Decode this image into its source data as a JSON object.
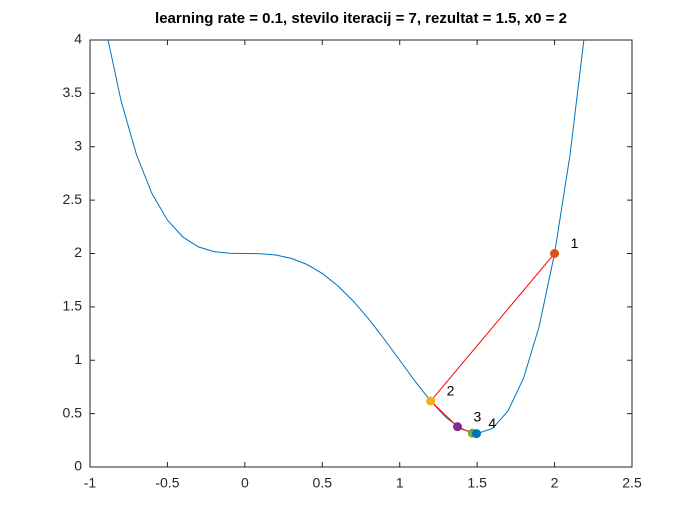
{
  "chart_data": {
    "type": "line",
    "title": "learning rate = 0.1, stevilo iteracij = 7, rezultat = 1.5, x0 = 2",
    "xlim": [
      -1,
      2.5
    ],
    "xticks": [
      -1,
      -0.5,
      0,
      0.5,
      1,
      1.5,
      2,
      2.5
    ],
    "ylim": [
      0,
      4
    ],
    "yticks": [
      0,
      0.5,
      1,
      1.5,
      2,
      2.5,
      3,
      3.5,
      4
    ],
    "curve": {
      "color": "#0072bd",
      "x": [
        -0.9,
        -0.8,
        -0.7,
        -0.6,
        -0.5,
        -0.4,
        -0.3,
        -0.2,
        -0.1,
        0,
        0.1,
        0.2,
        0.3,
        0.4,
        0.5,
        0.6,
        0.7,
        0.8,
        0.9,
        1.0,
        1.1,
        1.2,
        1.3,
        1.4,
        1.5,
        1.6,
        1.7,
        1.8,
        1.9,
        2.0,
        2.1,
        2.2
      ],
      "y": [
        4.114,
        3.434,
        2.926,
        2.562,
        2.313,
        2.154,
        2.062,
        2.018,
        2.002,
        2,
        1.998,
        1.986,
        1.954,
        1.898,
        1.813,
        1.698,
        1.554,
        1.386,
        1.198,
        1,
        0.802,
        0.618,
        0.462,
        0.354,
        0.313,
        0.362,
        0.526,
        0.834,
        1.314,
        2,
        2.926,
        4.13
      ]
    },
    "steps": {
      "color": "#ff0000",
      "x": [
        2,
        1.2,
        1.373,
        1.469,
        1.496
      ],
      "y": [
        2,
        0.618,
        0.378,
        0.317,
        0.313
      ],
      "colors": [
        "#d95319",
        "#edb120",
        "#7e2f8e",
        "#77ac30",
        "#0072bd"
      ],
      "labels": [
        "1",
        "2",
        "3",
        "4",
        null
      ]
    }
  }
}
